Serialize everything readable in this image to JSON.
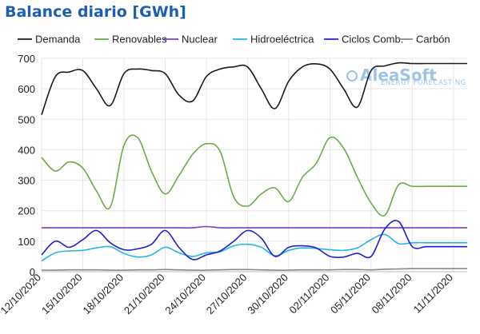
{
  "chart_data": {
    "type": "line",
    "title": "Balance diario [GWh]",
    "xlabel": "",
    "ylabel": "",
    "ylim": [
      0,
      700
    ],
    "yticks": [
      0,
      100,
      200,
      300,
      400,
      500,
      600,
      700
    ],
    "x": [
      "2020-10-12",
      "2020-10-13",
      "2020-10-14",
      "2020-10-15",
      "2020-10-16",
      "2020-10-17",
      "2020-10-18",
      "2020-10-19",
      "2020-10-20",
      "2020-10-21",
      "2020-10-22",
      "2020-10-23",
      "2020-10-24",
      "2020-10-25",
      "2020-10-26",
      "2020-10-27",
      "2020-10-28",
      "2020-10-29",
      "2020-10-30",
      "2020-10-31",
      "2020-11-01",
      "2020-11-02",
      "2020-11-03",
      "2020-11-04",
      "2020-11-05",
      "2020-11-06",
      "2020-11-07",
      "2020-11-08",
      "2020-11-09",
      "2020-11-10",
      "2020-11-11",
      "2020-11-12"
    ],
    "xtick_labels": [
      "12/10/2020",
      "15/10/2020",
      "18/10/2020",
      "21/10/2020",
      "24/10/2020",
      "27/10/2020",
      "30/10/2020",
      "02/11/2020",
      "05/11/2020",
      "08/11/2020",
      "11/11/2020"
    ],
    "grid": true,
    "legend": "top",
    "series": [
      {
        "name": "Demanda",
        "color": "#1a1a1a",
        "values": [
          515,
          640,
          655,
          660,
          600,
          545,
          650,
          665,
          660,
          650,
          580,
          560,
          640,
          665,
          672,
          672,
          600,
          535,
          625,
          672,
          682,
          665,
          600,
          540,
          660,
          675,
          685,
          683,
          683,
          683,
          683,
          683
        ]
      },
      {
        "name": "Renovables",
        "color": "#6aab4a",
        "values": [
          375,
          330,
          360,
          340,
          265,
          212,
          415,
          440,
          330,
          255,
          315,
          385,
          420,
          395,
          245,
          215,
          255,
          275,
          230,
          310,
          355,
          440,
          405,
          310,
          225,
          185,
          285,
          280,
          280,
          280,
          280,
          280
        ]
      },
      {
        "name": "Nuclear",
        "color": "#7a3fbf",
        "values": [
          144,
          144,
          144,
          144,
          144,
          144,
          144,
          144,
          144,
          144,
          144,
          144,
          148,
          144,
          144,
          144,
          144,
          144,
          144,
          144,
          144,
          144,
          144,
          144,
          144,
          144,
          144,
          144,
          144,
          144,
          144,
          144
        ]
      },
      {
        "name": "Hidroeléctrica",
        "color": "#21b8e6",
        "values": [
          35,
          62,
          68,
          70,
          78,
          82,
          60,
          48,
          55,
          80,
          62,
          50,
          62,
          65,
          85,
          90,
          80,
          52,
          70,
          78,
          76,
          72,
          70,
          78,
          105,
          122,
          92,
          95,
          95,
          95,
          95,
          95
        ]
      },
      {
        "name": "Ciclos Comb.",
        "color": "#1f1fd6",
        "values": [
          55,
          100,
          80,
          105,
          135,
          95,
          72,
          75,
          90,
          135,
          80,
          40,
          55,
          68,
          100,
          135,
          110,
          50,
          80,
          85,
          78,
          50,
          48,
          60,
          50,
          140,
          165,
          82,
          82,
          82,
          82,
          82
        ]
      },
      {
        "name": "Carbón",
        "color": "#8a8a8a",
        "values": [
          5,
          5,
          6,
          6,
          6,
          5,
          5,
          6,
          6,
          7,
          6,
          5,
          5,
          6,
          7,
          7,
          6,
          5,
          5,
          6,
          6,
          6,
          7,
          7,
          6,
          8,
          9,
          10,
          10,
          10,
          10,
          10
        ]
      }
    ]
  },
  "watermark": {
    "name": "AleaSoft",
    "tagline": "ENERGY FORECASTING"
  }
}
